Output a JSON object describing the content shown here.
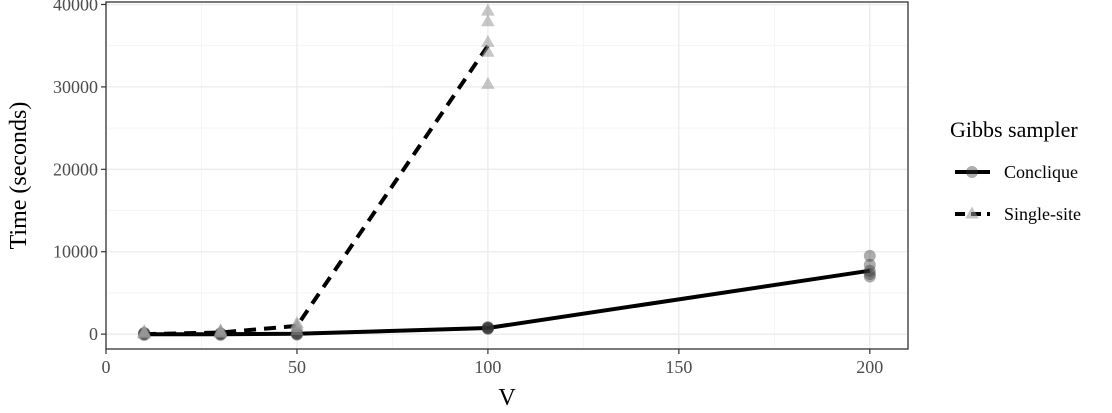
{
  "chart_data": {
    "type": "line",
    "xlabel": "V",
    "ylabel": "Time (seconds)",
    "xlim": [
      0,
      210
    ],
    "ylim": [
      -1800,
      40300
    ],
    "x_ticks": [
      0,
      50,
      100,
      150,
      200
    ],
    "y_ticks": [
      0,
      10000,
      20000,
      30000,
      40000
    ],
    "grid": true,
    "legend": {
      "title": "Gibbs sampler",
      "position": "right"
    },
    "series": [
      {
        "name": "Conclique",
        "line_style": "solid",
        "marker": "circle",
        "x": [
          10,
          30,
          50,
          100,
          200
        ],
        "y": [
          0,
          0,
          50,
          750,
          7700
        ],
        "points": [
          [
            10,
            -100
          ],
          [
            10,
            0
          ],
          [
            10,
            50
          ],
          [
            10,
            100
          ],
          [
            10,
            150
          ],
          [
            30,
            -100
          ],
          [
            30,
            0
          ],
          [
            30,
            50
          ],
          [
            30,
            100
          ],
          [
            50,
            -50
          ],
          [
            50,
            0
          ],
          [
            50,
            80
          ],
          [
            50,
            150
          ],
          [
            100,
            650
          ],
          [
            100,
            700
          ],
          [
            100,
            750
          ],
          [
            100,
            800
          ],
          [
            100,
            850
          ],
          [
            200,
            7000
          ],
          [
            200,
            7300
          ],
          [
            200,
            7700
          ],
          [
            200,
            8400
          ],
          [
            200,
            9500
          ]
        ]
      },
      {
        "name": "Single-site",
        "line_style": "dashed",
        "marker": "triangle",
        "x": [
          10,
          30,
          50,
          100
        ],
        "y": [
          0,
          200,
          1000,
          35000
        ],
        "points": [
          [
            10,
            0
          ],
          [
            10,
            100
          ],
          [
            10,
            200
          ],
          [
            10,
            300
          ],
          [
            30,
            100
          ],
          [
            30,
            200
          ],
          [
            30,
            350
          ],
          [
            30,
            400
          ],
          [
            50,
            400
          ],
          [
            50,
            800
          ],
          [
            50,
            1100
          ],
          [
            50,
            1300
          ],
          [
            100,
            30300
          ],
          [
            100,
            34200
          ],
          [
            100,
            35400
          ],
          [
            100,
            37900
          ],
          [
            100,
            39200
          ]
        ]
      }
    ],
    "colors": {
      "line": "#000000",
      "panel_border": "#333333",
      "grid_major": "#ebebeb",
      "grid_minor": "#f5f5f5",
      "conclique_marker": "#333333",
      "single_site_marker": "#999999"
    }
  }
}
